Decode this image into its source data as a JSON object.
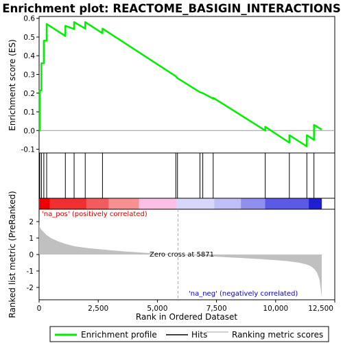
{
  "chart_data": {
    "type": "line",
    "title": "Enrichment plot: REACTOME_BASIGIN_INTERACTIONS",
    "panels": {
      "enrichment": {
        "ylabel": "Enrichment score (ES)",
        "ylim": [
          -0.12,
          0.61
        ],
        "yticks": [
          "-0.1",
          "0.0",
          "0.1",
          "0.2",
          "0.3",
          "0.4",
          "0.5",
          "0.6"
        ],
        "ytick_values": [
          -0.1,
          0.0,
          0.1,
          0.2,
          0.3,
          0.4,
          0.5,
          0.6
        ],
        "series": [
          {
            "name": "Enrichment profile",
            "color": "#00ee00",
            "x": [
              0,
              30,
              30,
              100,
              100,
              200,
              200,
              320,
              320,
              1110,
              1110,
              1480,
              1480,
              1950,
              1950,
              2680,
              2680,
              5780,
              5780,
              5850,
              5850,
              6800,
              6800,
              6920,
              6920,
              7360,
              7360,
              9560,
              9560,
              10580,
              10580,
              11320,
              11320,
              11620,
              11620,
              11950
            ],
            "y": [
              0.0,
              0.0,
              0.215,
              0.215,
              0.36,
              0.36,
              0.48,
              0.48,
              0.57,
              0.505,
              0.56,
              0.543,
              0.58,
              0.545,
              0.58,
              0.52,
              0.545,
              0.29,
              0.29,
              0.28,
              0.28,
              0.205,
              0.205,
              0.2,
              0.2,
              0.17,
              0.175,
              0.0,
              0.02,
              -0.065,
              -0.025,
              -0.085,
              -0.025,
              -0.05,
              0.03,
              0.005
            ]
          }
        ],
        "zero_line": 0.0
      },
      "hits": {
        "name": "Hits",
        "positions": [
          30,
          100,
          200,
          320,
          1110,
          1480,
          1950,
          2680,
          5780,
          5850,
          6800,
          6920,
          7360,
          9560,
          10580,
          11320,
          11620
        ]
      },
      "color_bar": {
        "segments": [
          {
            "from": 0,
            "to": 450,
            "color": "#ee0000"
          },
          {
            "from": 450,
            "to": 2000,
            "color": "#f03030"
          },
          {
            "from": 2000,
            "to": 2950,
            "color": "#f35c5c"
          },
          {
            "from": 2950,
            "to": 4220,
            "color": "#f79090"
          },
          {
            "from": 4220,
            "to": 5800,
            "color": "#fbbfe6"
          },
          {
            "from": 5800,
            "to": 7400,
            "color": "#d7d7fb"
          },
          {
            "from": 7400,
            "to": 8530,
            "color": "#c0c0f8"
          },
          {
            "from": 8530,
            "to": 9550,
            "color": "#8f8ff0"
          },
          {
            "from": 9550,
            "to": 11400,
            "color": "#5a5ae6"
          },
          {
            "from": 11400,
            "to": 11950,
            "color": "#1e1ed2"
          }
        ]
      },
      "ranked_metric": {
        "ylabel": "Ranked list metric (PreRanked)",
        "ylim": [
          -2.75,
          2.75
        ],
        "yticks": [
          "-2",
          "-1",
          "0",
          "1",
          "2"
        ],
        "ytick_values": [
          -2,
          -1,
          0,
          1,
          2
        ],
        "fill_color": "#c0c0c0",
        "x": [
          0,
          10,
          50,
          100,
          200,
          300,
          500,
          800,
          1100,
          1500,
          2000,
          2500,
          3000,
          3500,
          4000,
          4500,
          5000,
          5500,
          5871,
          6500,
          7000,
          7500,
          8000,
          8500,
          9000,
          9500,
          10000,
          10500,
          11000,
          11300,
          11500,
          11650,
          11750,
          11850,
          11900,
          11950
        ],
        "values": [
          2.3,
          1.75,
          1.6,
          1.5,
          1.35,
          1.2,
          1.0,
          0.8,
          0.65,
          0.5,
          0.4,
          0.33,
          0.26,
          0.2,
          0.15,
          0.1,
          0.06,
          0.03,
          0.0,
          -0.05,
          -0.09,
          -0.13,
          -0.17,
          -0.21,
          -0.25,
          -0.29,
          -0.34,
          -0.4,
          -0.5,
          -0.6,
          -0.72,
          -0.9,
          -1.1,
          -1.5,
          -2.0,
          -2.6
        ]
      }
    },
    "xlabel": "Rank in Ordered Dataset",
    "xlim": [
      0,
      12500
    ],
    "xticks": [
      "0",
      "2,500",
      "5,000",
      "7,500",
      "10,000",
      "12,500"
    ],
    "xtick_values": [
      0,
      2500,
      5000,
      7500,
      10000,
      12500
    ],
    "zero_cross": {
      "label": "Zero cross at 5871",
      "x": 5871
    },
    "annotations": {
      "pos_label": "'na_pos' (positively correlated)",
      "pos_color": "#cc0000",
      "neg_label": "'na_neg' (negatively correlated)",
      "neg_color": "#0000cc"
    },
    "legend": {
      "placement": "bottom",
      "entries": [
        {
          "label": "Enrichment profile",
          "color": "#00ee00"
        },
        {
          "label": "Hits",
          "color": "#000000"
        },
        {
          "label": "Ranking metric scores",
          "color": "#c0c0c0"
        }
      ]
    }
  }
}
